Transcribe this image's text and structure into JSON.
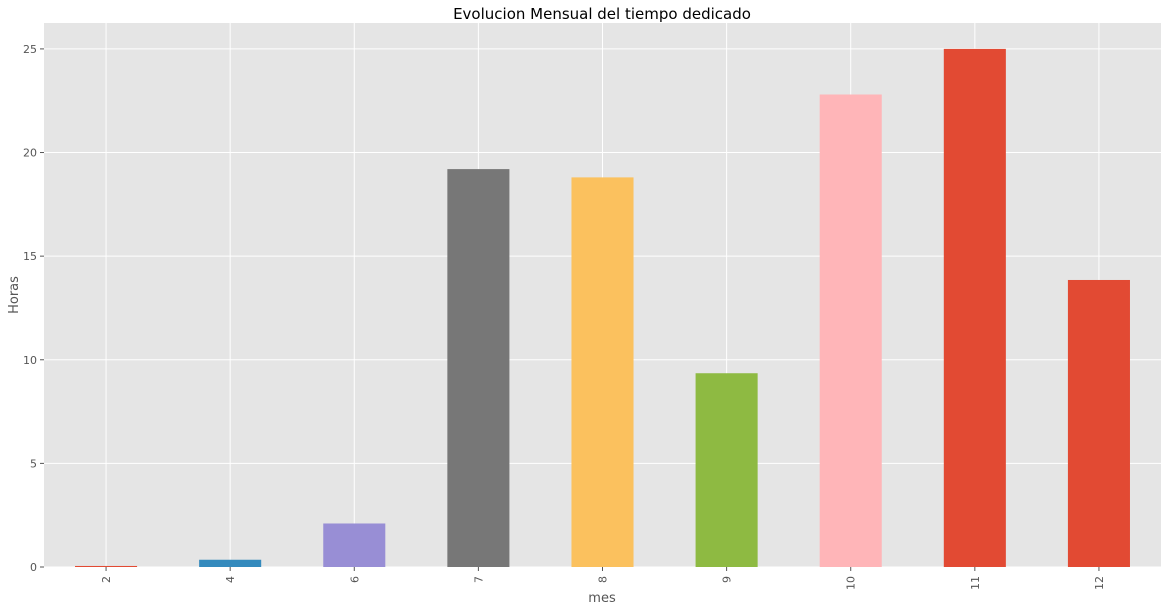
{
  "chart_data": {
    "type": "bar",
    "title": "Evolucion Mensual del tiempo dedicado",
    "xlabel": "mes",
    "ylabel": "Horas",
    "categories": [
      "2",
      "4",
      "6",
      "7",
      "8",
      "9",
      "10",
      "11",
      "12"
    ],
    "values": [
      0.05,
      0.35,
      2.1,
      19.2,
      18.8,
      9.35,
      22.8,
      25.0,
      13.85
    ],
    "colors": [
      "#E24A33",
      "#348ABD",
      "#988ED5",
      "#777777",
      "#FBC15E",
      "#8EBA42",
      "#FFB5B8",
      "#E24A33",
      "#E24A33"
    ],
    "ylim": [
      0,
      26.25
    ],
    "yticks": [
      "0",
      "5",
      "10",
      "15",
      "20",
      "25"
    ],
    "grid": true,
    "background_color": "#E5E5E5",
    "grid_color": "#FFFFFF"
  }
}
